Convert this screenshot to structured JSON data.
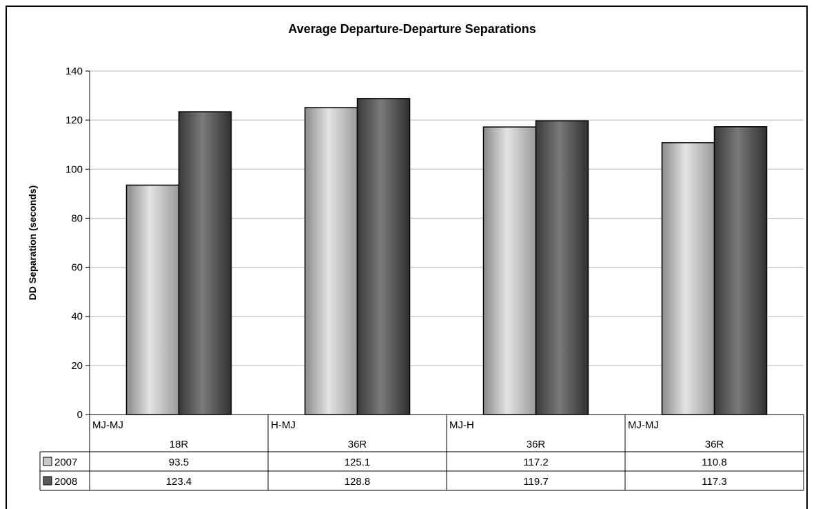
{
  "chart_data": {
    "type": "bar",
    "title": "Average Departure-Departure Separations",
    "ylabel": "DD Separation (seconds)",
    "xlabel": "",
    "ylim": [
      0,
      140
    ],
    "yticks": [
      "0",
      "20",
      "40",
      "60",
      "80",
      "100",
      "120",
      "140"
    ],
    "grid": true,
    "legend": "data-table-left",
    "categories": [
      {
        "pair": "MJ-MJ",
        "runway": "18R"
      },
      {
        "pair": "H-MJ",
        "runway": "36R"
      },
      {
        "pair": "MJ-H",
        "runway": "36R"
      },
      {
        "pair": "MJ-MJ",
        "runway": "36R"
      }
    ],
    "series": [
      {
        "name": "2007",
        "values": [
          93.5,
          125.1,
          117.2,
          110.8
        ],
        "labels": [
          "93.5",
          "125.1",
          "117.2",
          "110.8"
        ],
        "color": "#c8c8c8"
      },
      {
        "name": "2008",
        "values": [
          123.4,
          128.8,
          119.7,
          117.3
        ],
        "labels": [
          "123.4",
          "128.8",
          "119.7",
          "117.3"
        ],
        "color": "#5a5a5a"
      }
    ]
  }
}
